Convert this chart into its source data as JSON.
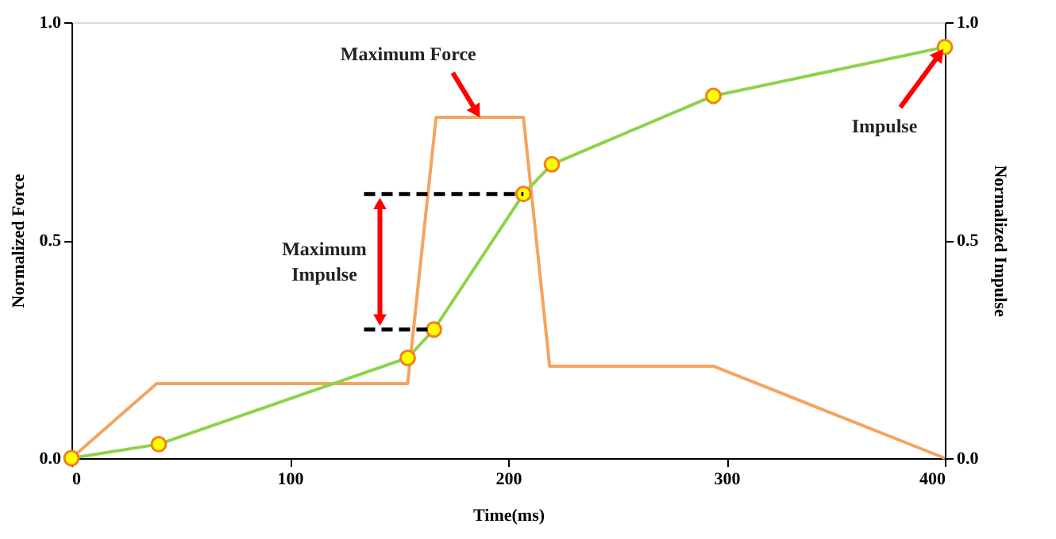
{
  "chart_data": {
    "type": "line",
    "xlabel": "Time(ms)",
    "ylabel": "Normalized Force",
    "y2label": "Normalized Impulse",
    "series": [
      {
        "color": "#f4a460",
        "marker": "none",
        "x": [
          0,
          39,
          154,
          167,
          207,
          219,
          294,
          400
        ],
        "values": [
          0,
          0.171,
          0.171,
          0.782,
          0.782,
          0.211,
          0.211,
          0
        ]
      },
      {
        "color": "#8dd34a",
        "marker": "circle",
        "axis": "y2",
        "x": [
          0,
          40,
          154,
          166,
          207,
          220,
          294,
          400
        ],
        "values": [
          0,
          0.032,
          0.23,
          0.295,
          0.606,
          0.674,
          0.831,
          0.943
        ]
      },
      {
        "color": "#000000",
        "marker": "none",
        "line_style": "dashed",
        "axis": "y2",
        "x": [
          134,
          166
        ],
        "values": [
          0.295,
          0.295
        ]
      },
      {
        "color": "#000000",
        "marker": "none",
        "line_style": "dashed",
        "axis": "y2",
        "x": [
          134,
          207
        ],
        "values": [
          0.606,
          0.606
        ]
      }
    ],
    "xlim": [
      0,
      400
    ],
    "xticks": [
      0,
      100,
      200,
      300,
      400
    ],
    "ylim": [
      0,
      1
    ],
    "yticks": [
      {
        "value": 0,
        "label": "0.0"
      },
      {
        "value": 0.5,
        "label": "0.5"
      },
      {
        "value": 1,
        "label": "1.0"
      }
    ],
    "y2lim": [
      0,
      1
    ],
    "y2ticks": [
      {
        "value": 0,
        "label": "0.0"
      },
      {
        "value": 0.5,
        "label": "0.5"
      },
      {
        "value": 1,
        "label": "1.0"
      }
    ],
    "annotations": [
      {
        "text": "Maximum Force",
        "x": 187,
        "y": 0.782
      },
      "Maximum\nImpulse",
      {
        "text": "Impulse",
        "x": 400,
        "y": 0.943
      }
    ],
    "grid": false
  }
}
